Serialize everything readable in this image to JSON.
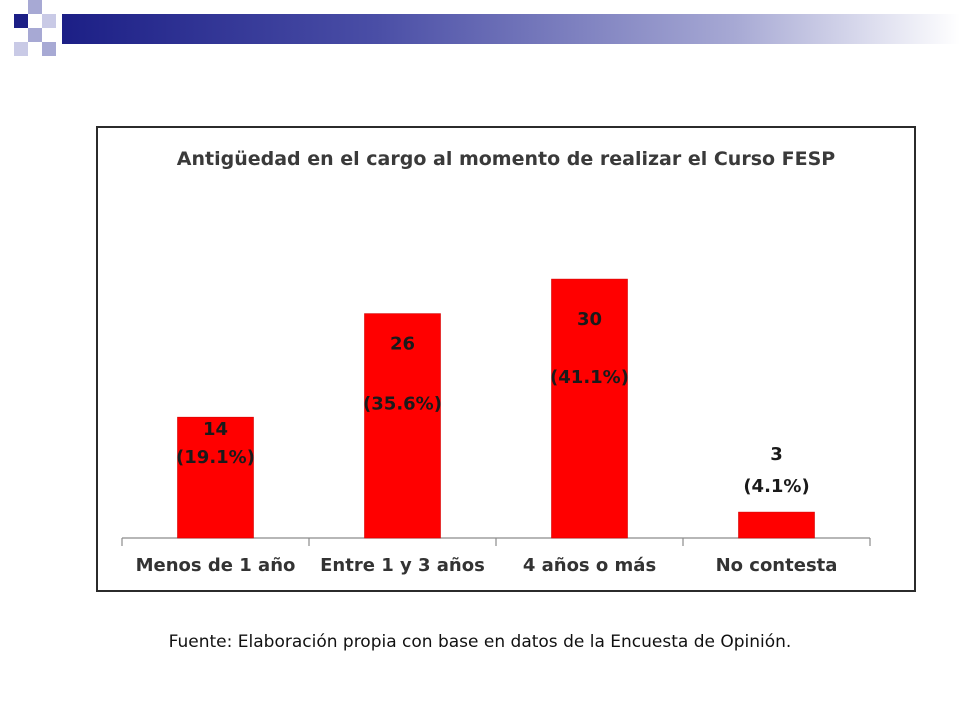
{
  "colors": {
    "bar": "#ff0000",
    "bar_edge": "#d40000",
    "label_text": "#1a1a1a",
    "axis": "#8c8c8c",
    "header_dark": "#1c1f86",
    "header_light": "#a7a9d4"
  },
  "chart_data": {
    "type": "bar",
    "title": "Antigüedad en el cargo al momento de realizar el Curso FESP",
    "xlabel": "",
    "ylabel": "",
    "categories": [
      "Menos de 1 año",
      "Entre 1 y 3 años",
      "4 años o más",
      "No contesta"
    ],
    "values": [
      14,
      26,
      30,
      3
    ],
    "percent_labels": [
      "(19.1%)",
      "(35.6%)",
      "(41.1%)",
      "(4.1%)"
    ],
    "ylim": [
      0,
      32
    ],
    "grid": false,
    "legend": "none"
  },
  "footer": {
    "source": "Fuente: Elaboración propia con base en datos de la Encuesta de Opinión."
  }
}
